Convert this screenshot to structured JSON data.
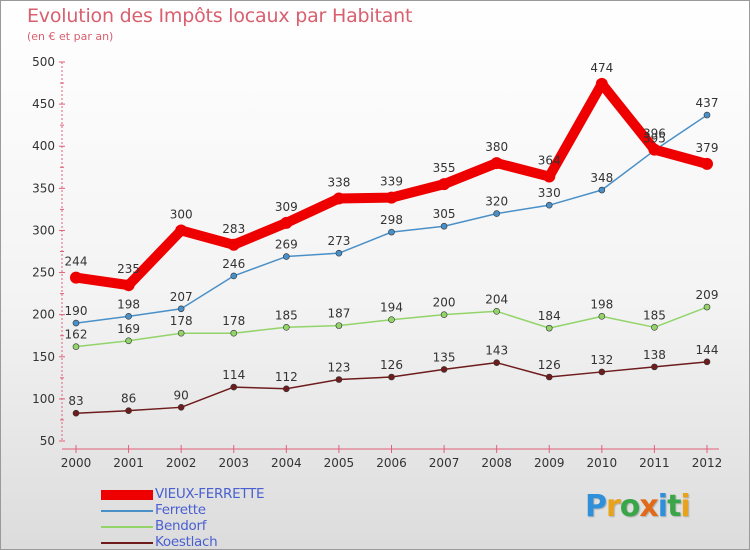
{
  "header": {
    "title": "Evolution des Impôts locaux par Habitant",
    "subtitle": "(en € et par an)"
  },
  "logo": {
    "text": "Proxiti",
    "letters": [
      {
        "ch": "P",
        "color": "#2f8fd8"
      },
      {
        "ch": "r",
        "color": "#e8a21c"
      },
      {
        "ch": "o",
        "color": "#3aa64a"
      },
      {
        "ch": "x",
        "color": "#e06a1a"
      },
      {
        "ch": "i",
        "color": "#2f8fd8"
      },
      {
        "ch": "t",
        "color": "#3aa64a"
      },
      {
        "ch": "i",
        "color": "#e8a21c"
      }
    ]
  },
  "chart_data": {
    "type": "line",
    "title": "Evolution des Impôts locaux par Habitant",
    "subtitle": "(en € et par an)",
    "xlabel": "",
    "ylabel": "",
    "ylim": [
      50,
      500
    ],
    "yticks": [
      50,
      100,
      150,
      200,
      250,
      300,
      350,
      400,
      450,
      500
    ],
    "x": [
      "2000",
      "2001",
      "2002",
      "2003",
      "2004",
      "2005",
      "2006",
      "2007",
      "2008",
      "2009",
      "2010",
      "2011",
      "2012"
    ],
    "grid": false,
    "legend_position": "bottom-left",
    "series": [
      {
        "name": "VIEUX-FERRETTE",
        "color": "#ee0000",
        "values": [
          244,
          235,
          300,
          283,
          309,
          338,
          339,
          355,
          380,
          364,
          474,
          396,
          379
        ]
      },
      {
        "name": "Ferrette",
        "color": "#4a90c8",
        "values": [
          190,
          198,
          207,
          246,
          269,
          273,
          298,
          305,
          320,
          330,
          348,
          395,
          437
        ]
      },
      {
        "name": "Bendorf",
        "color": "#92d46a",
        "values": [
          162,
          169,
          178,
          178,
          185,
          187,
          194,
          200,
          204,
          184,
          198,
          185,
          209
        ]
      },
      {
        "name": "Koestlach",
        "color": "#6e1c1c",
        "values": [
          83,
          86,
          90,
          114,
          112,
          123,
          126,
          135,
          143,
          126,
          132,
          138,
          144
        ]
      }
    ]
  }
}
